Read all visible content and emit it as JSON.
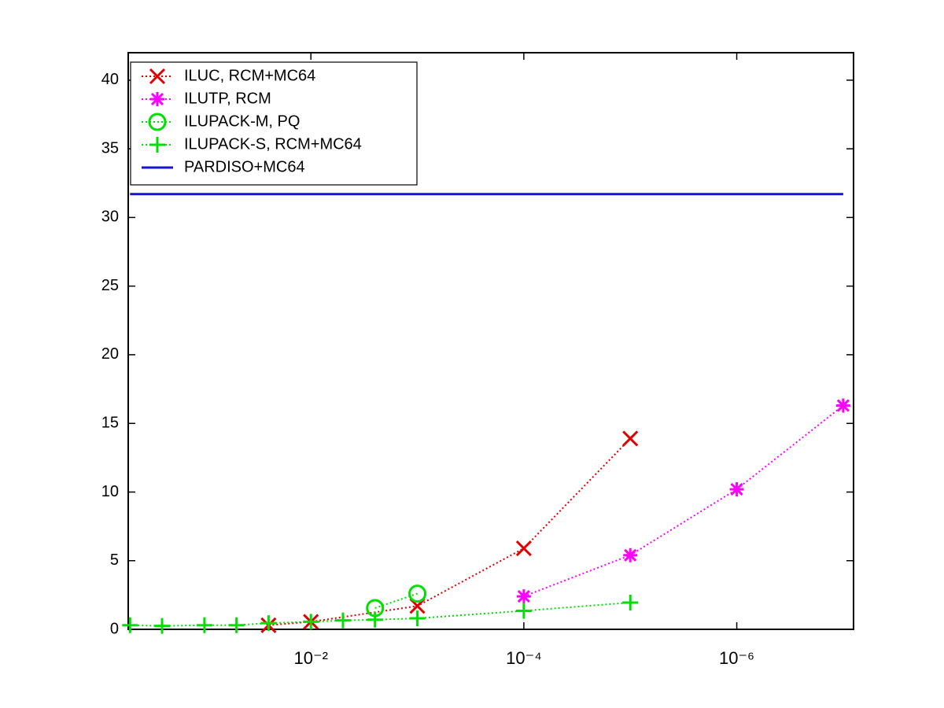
{
  "chart_data": {
    "type": "line",
    "xscale": "log",
    "xreverse": true,
    "xlim": [
      0.52,
      8e-08
    ],
    "ylim": [
      0,
      42
    ],
    "xticks": [
      {
        "value": 0.01,
        "label": "10⁻²"
      },
      {
        "value": 0.0001,
        "label": "10⁻⁴"
      },
      {
        "value": 1e-06,
        "label": "10⁻⁶"
      }
    ],
    "yticks": [
      0,
      5,
      10,
      15,
      20,
      25,
      30,
      35,
      40
    ],
    "legend": "upper left",
    "series": [
      {
        "name": "ILUC, RCM+MC64",
        "color": "#e00000",
        "marker": "x",
        "linestyle": "dotted",
        "x": [
          0.025,
          0.01,
          0.001,
          0.0001,
          1e-05
        ],
        "values": [
          0.3,
          0.55,
          1.7,
          5.9,
          13.9
        ]
      },
      {
        "name": "ILUTP, RCM",
        "color": "#ff00ff",
        "marker": "*",
        "linestyle": "dotted",
        "x": [
          0.0001,
          1e-05,
          1e-06,
          1e-07
        ],
        "values": [
          2.4,
          5.4,
          10.2,
          16.3
        ]
      },
      {
        "name": "ILUPACK-M, PQ",
        "color": "#00e000",
        "marker": "o",
        "linestyle": "dotted",
        "x": [
          0.0025,
          0.001
        ],
        "values": [
          1.55,
          2.6
        ]
      },
      {
        "name": "ILUPACK-S, RCM+MC64",
        "color": "#00e000",
        "marker": "+",
        "linestyle": "dotted",
        "x": [
          0.5,
          0.25,
          0.1,
          0.05,
          0.025,
          0.01,
          0.005,
          0.0025,
          0.001,
          0.0001,
          1e-05
        ],
        "values": [
          0.3,
          0.25,
          0.3,
          0.3,
          0.45,
          0.55,
          0.65,
          0.7,
          0.8,
          1.35,
          1.95
        ]
      },
      {
        "name": "PARDISO+MC64",
        "color": "#1414d2",
        "marker": "none",
        "linestyle": "solid",
        "x": [
          0.5,
          1e-07
        ],
        "values": [
          31.7,
          31.7
        ]
      }
    ]
  }
}
